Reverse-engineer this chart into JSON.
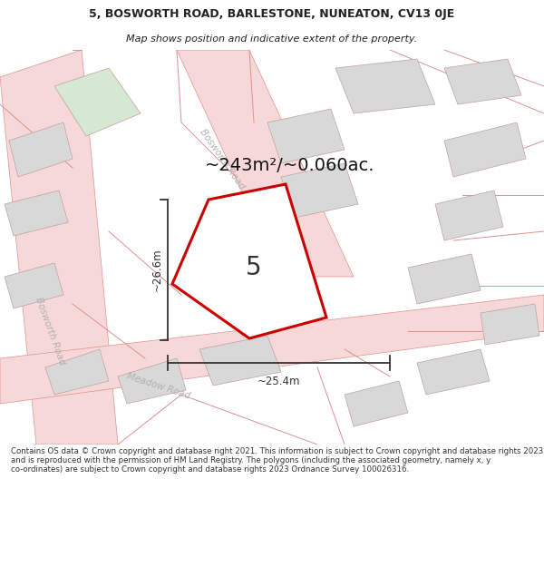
{
  "title_line1": "5, BOSWORTH ROAD, BARLESTONE, NUNEATON, CV13 0JE",
  "title_line2": "Map shows position and indicative extent of the property.",
  "area_text": "~243m²/~0.060ac.",
  "label_number": "5",
  "dim_width": "~25.4m",
  "dim_height": "~26.6m",
  "road_label_bosworth_diag": "Bosworth Road",
  "road_label_bosworth_left": "Bosworth Road",
  "road_label_meadow": "Meadow Road",
  "footer_text": "Contains OS data © Crown copyright and database right 2021. This information is subject to Crown copyright and database rights 2023 and is reproduced with the permission of HM Land Registry. The polygons (including the associated geometry, namely x, y co-ordinates) are subject to Crown copyright and database rights 2023 Ordnance Survey 100026316.",
  "bg_color": "#ffffff",
  "map_bg_color": "#f2f2f2",
  "road_fill": "#f7d8d8",
  "road_edge": "#e09090",
  "plot_stroke": "#cc0000",
  "bld_fill": "#d8d8d8",
  "bld_edge": "#c0a0a0",
  "green_fill": "#d4e8d4",
  "road_lbl": "#b0b0b0",
  "dim_col": "#333333",
  "title_col": "#222222",
  "footer_col": "#333333"
}
